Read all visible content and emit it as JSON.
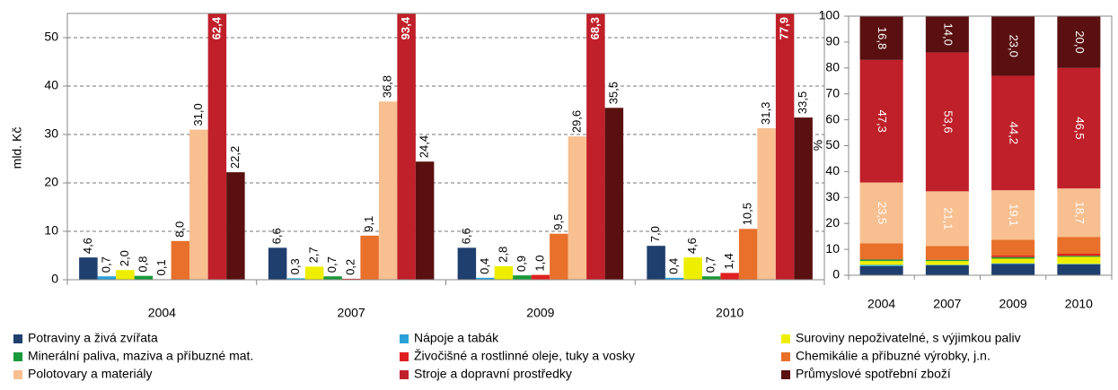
{
  "chart_data": [
    {
      "type": "bar",
      "ylabel": "mld. Kč",
      "categories": [
        "2004",
        "2007",
        "2009",
        "2010"
      ],
      "ylim": [
        0,
        55
      ],
      "yticks": [
        0,
        10,
        20,
        30,
        40,
        50
      ],
      "grid": true,
      "legend": "bottom",
      "series": [
        {
          "name": "Potraviny a živá zvířata",
          "color": "#1f3f6e",
          "values": [
            4.6,
            6.6,
            6.6,
            7.0
          ],
          "value_labels": [
            "4,6",
            "6,6",
            "6,6",
            "7,0"
          ]
        },
        {
          "name": "Nápoje a tabák",
          "color": "#2aa0d8",
          "values": [
            0.7,
            0.3,
            0.4,
            0.4
          ],
          "value_labels": [
            "0,7",
            "0,3",
            "0,4",
            "0,4"
          ]
        },
        {
          "name": "Suroviny nepoživatelné, s výjimkou paliv",
          "color": "#eeee00",
          "values": [
            2.0,
            2.7,
            2.8,
            4.6
          ],
          "value_labels": [
            "2,0",
            "2,7",
            "2,8",
            "4,6"
          ]
        },
        {
          "name": "Minerální paliva, maziva a příbuzné mat.",
          "color": "#1a9a3a",
          "values": [
            0.8,
            0.7,
            0.9,
            0.7
          ],
          "value_labels": [
            "0,8",
            "0,7",
            "0,9",
            "0,7"
          ]
        },
        {
          "name": "Živočišné a rostlinné oleje, tuky a vosky",
          "color": "#e02020",
          "values": [
            0.1,
            0.2,
            1.0,
            1.4
          ],
          "value_labels": [
            "0,1",
            "0,2",
            "1,0",
            "1,4"
          ]
        },
        {
          "name": "Chemikálie a příbuzné výrobky, j.n.",
          "color": "#e8702a",
          "values": [
            8.0,
            9.1,
            9.5,
            10.5
          ],
          "value_labels": [
            "8,0",
            "9,1",
            "9,5",
            "10,5"
          ]
        },
        {
          "name": "Polotovary a materiály",
          "color": "#f8bf90",
          "values": [
            31.0,
            36.8,
            29.6,
            31.3
          ],
          "value_labels": [
            "31,0",
            "36,8",
            "29,6",
            "31,3"
          ]
        },
        {
          "name": "Stroje a dopravní prostředky",
          "color": "#c0202a",
          "values": [
            62.4,
            93.4,
            68.3,
            77.9
          ],
          "value_labels": [
            "62,4",
            "93,4",
            "68,3",
            "77,9"
          ]
        },
        {
          "name": "Průmyslové spotřební zboží",
          "color": "#5a1010",
          "values": [
            22.2,
            24.4,
            35.5,
            33.5
          ],
          "value_labels": [
            "22,2",
            "24,4",
            "35,5",
            "33,5"
          ]
        }
      ]
    },
    {
      "type": "stacked_bar",
      "ylabel": "%",
      "categories": [
        "2004",
        "2007",
        "2009",
        "2010"
      ],
      "ylim": [
        0,
        100
      ],
      "yticks": [
        0,
        10,
        20,
        30,
        40,
        50,
        60,
        70,
        80,
        90,
        100
      ],
      "series": [
        {
          "color": "#1f3f6e",
          "values": [
            3.5,
            3.8,
            4.3,
            4.2
          ]
        },
        {
          "color": "#2aa0d8",
          "values": [
            0.5,
            0.2,
            0.3,
            0.2
          ]
        },
        {
          "color": "#eeee00",
          "values": [
            1.5,
            1.5,
            1.8,
            2.7
          ]
        },
        {
          "color": "#1a9a3a",
          "values": [
            0.6,
            0.4,
            0.6,
            0.4
          ]
        },
        {
          "color": "#e02020",
          "values": [
            0.1,
            0.1,
            0.6,
            0.8
          ]
        },
        {
          "color": "#e8702a",
          "values": [
            6.1,
            5.3,
            6.1,
            6.5
          ]
        },
        {
          "color": "#f8bf90",
          "values": [
            23.5,
            21.1,
            19.1,
            18.7
          ],
          "value_labels": [
            "23,5",
            "21,1",
            "19,1",
            "18,7"
          ]
        },
        {
          "color": "#c0202a",
          "values": [
            47.3,
            53.6,
            44.2,
            46.5
          ],
          "value_labels": [
            "47,3",
            "53,6",
            "44,2",
            "46,5"
          ]
        },
        {
          "color": "#5a1010",
          "values": [
            16.8,
            14.0,
            23.0,
            20.0
          ],
          "value_labels": [
            "16,8",
            "14,0",
            "23,0",
            "20,0"
          ]
        }
      ]
    }
  ]
}
